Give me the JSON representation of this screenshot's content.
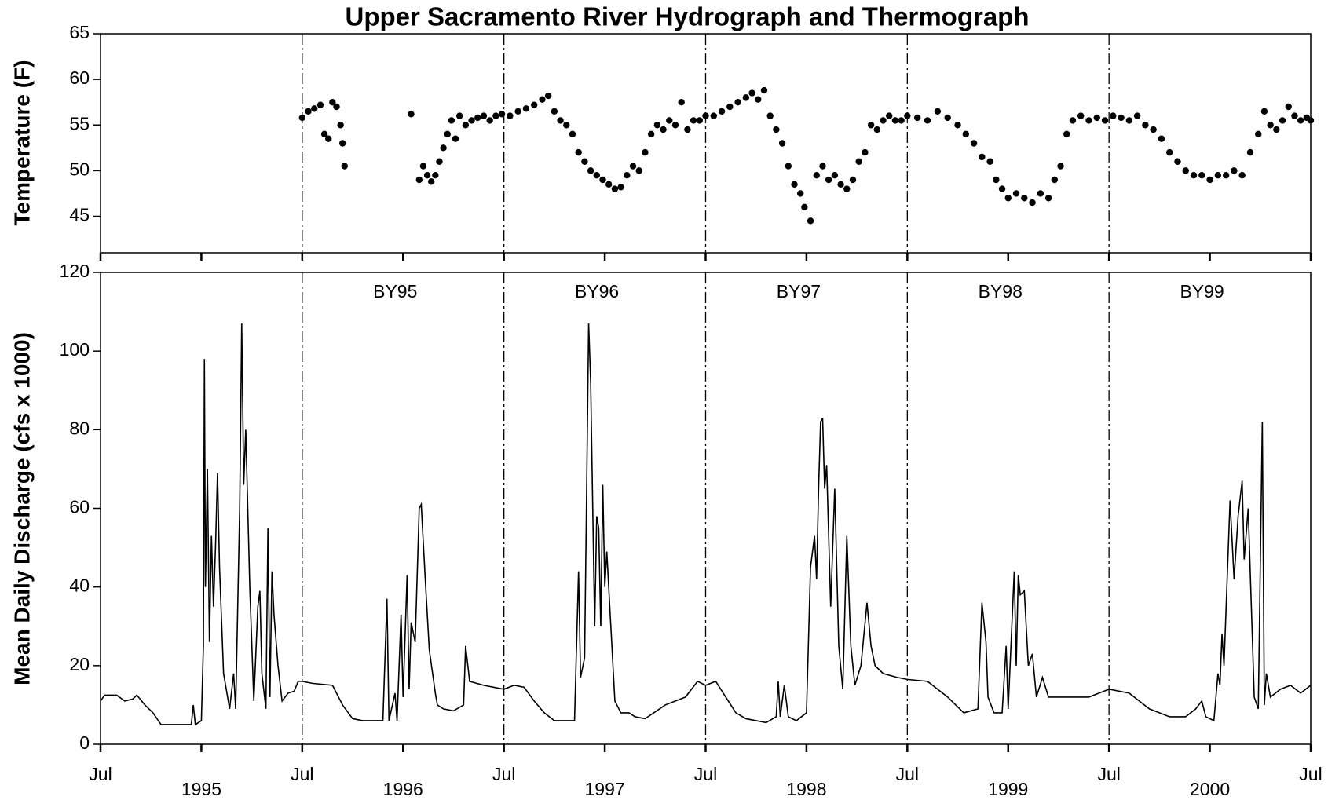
{
  "chart_data": [
    {
      "type": "scatter",
      "title": "Upper Sacramento River Hydrograph and Thermograph",
      "ylabel": "Temperature (F)",
      "xlim": [
        1994.5,
        2000.5
      ],
      "ylim": [
        41,
        65
      ],
      "yticks": [
        45,
        50,
        55,
        60,
        65
      ],
      "color": "#000000",
      "x": [
        1995.5,
        1995.53,
        1995.56,
        1995.59,
        1995.61,
        1995.63,
        1995.65,
        1995.67,
        1995.69,
        1995.7,
        1995.71,
        1996.04,
        1996.08,
        1996.1,
        1996.12,
        1996.14,
        1996.16,
        1996.18,
        1996.2,
        1996.22,
        1996.24,
        1996.26,
        1996.28,
        1996.31,
        1996.34,
        1996.37,
        1996.4,
        1996.43,
        1996.46,
        1996.49,
        1996.53,
        1996.57,
        1996.61,
        1996.65,
        1996.69,
        1996.72,
        1996.75,
        1996.78,
        1996.81,
        1996.84,
        1996.87,
        1996.9,
        1996.93,
        1996.96,
        1996.99,
        1997.02,
        1997.05,
        1997.08,
        1997.11,
        1997.14,
        1997.17,
        1997.2,
        1997.23,
        1997.26,
        1997.29,
        1997.32,
        1997.35,
        1997.38,
        1997.41,
        1997.44,
        1997.47,
        1997.5,
        1997.54,
        1997.58,
        1997.62,
        1997.66,
        1997.7,
        1997.73,
        1997.76,
        1997.79,
        1997.82,
        1997.85,
        1997.88,
        1997.91,
        1997.94,
        1997.97,
        1997.99,
        1998.02,
        1998.05,
        1998.08,
        1998.11,
        1998.14,
        1998.17,
        1998.2,
        1998.23,
        1998.26,
        1998.29,
        1998.32,
        1998.35,
        1998.38,
        1998.41,
        1998.44,
        1998.47,
        1998.5,
        1998.55,
        1998.6,
        1998.65,
        1998.7,
        1998.75,
        1998.79,
        1998.83,
        1998.87,
        1998.91,
        1998.94,
        1998.97,
        1999.0,
        1999.04,
        1999.08,
        1999.12,
        1999.16,
        1999.2,
        1999.23,
        1999.26,
        1999.29,
        1999.32,
        1999.36,
        1999.4,
        1999.44,
        1999.48,
        1999.52,
        1999.56,
        1999.6,
        1999.64,
        1999.68,
        1999.72,
        1999.76,
        1999.8,
        1999.84,
        1999.88,
        1999.92,
        1999.96,
        2000.0,
        2000.04,
        2000.08,
        2000.12,
        2000.16,
        2000.2,
        2000.24,
        2000.27,
        2000.3,
        2000.33,
        2000.36,
        2000.39,
        2000.42,
        2000.45,
        2000.48,
        2000.5
      ],
      "values": [
        55.8,
        56.5,
        56.8,
        57.2,
        54,
        53.5,
        57.5,
        57,
        55,
        53,
        50.5,
        56.2,
        49,
        50.5,
        49.5,
        48.8,
        49.5,
        51,
        52.5,
        54,
        55.5,
        53.5,
        56,
        55,
        55.5,
        55.8,
        56,
        55.5,
        56,
        56.2,
        56,
        56.5,
        56.8,
        57.2,
        57.8,
        58.2,
        56.5,
        55.5,
        55,
        54,
        52,
        51,
        50,
        49.5,
        49,
        48.5,
        48,
        48.2,
        49.5,
        50.5,
        50,
        52,
        54,
        55,
        54.5,
        55.5,
        55,
        57.5,
        54.5,
        55.5,
        55.5,
        56,
        56,
        56.5,
        57,
        57.5,
        58,
        58.5,
        57.8,
        58.8,
        56,
        54.5,
        53,
        50.5,
        48.5,
        47.5,
        46,
        44.5,
        49.5,
        50.5,
        49,
        49.5,
        48.5,
        48,
        49,
        51,
        52,
        55,
        54.5,
        55.5,
        56,
        55.5,
        55.5,
        56,
        55.8,
        55.5,
        56.5,
        55.8,
        55,
        54,
        53,
        51.5,
        51,
        49,
        48,
        47,
        47.5,
        47,
        46.5,
        47.5,
        47,
        49,
        50.5,
        54,
        55.5,
        56,
        55.5,
        55.8,
        55.5,
        56,
        55.8,
        55.5,
        56,
        55,
        54.5,
        53.5,
        52,
        51,
        50,
        49.5,
        49.5,
        49,
        49.5,
        49.5,
        50,
        49.5,
        52,
        54,
        56.5,
        55,
        54.5,
        55.5,
        57,
        56,
        55.5,
        55.8,
        55.5
      ]
    },
    {
      "type": "line",
      "ylabel": "Mean Daily Discharge (cfs x 1000)",
      "color": "#000000",
      "xlim": [
        1994.5,
        2000.5
      ],
      "ylim": [
        0,
        120
      ],
      "yticks": [
        0,
        20,
        40,
        60,
        80,
        100,
        120
      ],
      "xticks": [
        {
          "value": 1994.5,
          "label": "Jul"
        },
        1995,
        {
          "value": 1995.5,
          "label": "Jul"
        },
        1996,
        {
          "value": 1996.5,
          "label": "Jul"
        },
        1997,
        {
          "value": 1997.5,
          "label": "Jul"
        },
        1998,
        {
          "value": 1998.5,
          "label": "Jul"
        },
        1999,
        {
          "value": 1999.5,
          "label": "Jul"
        },
        2000,
        {
          "value": 2000.5,
          "label": "Jul"
        }
      ],
      "annotations": [
        "BY95",
        "BY96",
        "BY97",
        "BY98",
        "BY99"
      ],
      "x": [
        1994.5,
        1994.52,
        1994.58,
        1994.62,
        1994.66,
        1994.68,
        1994.72,
        1994.76,
        1994.8,
        1994.85,
        1994.9,
        1994.95,
        1994.96,
        1994.97,
        1995.0,
        1995.01,
        1995.015,
        1995.02,
        1995.03,
        1995.04,
        1995.05,
        1995.06,
        1995.07,
        1995.08,
        1995.09,
        1995.11,
        1995.14,
        1995.16,
        1995.17,
        1995.19,
        1995.2,
        1995.21,
        1995.22,
        1995.24,
        1995.26,
        1995.28,
        1995.29,
        1995.3,
        1995.32,
        1995.33,
        1995.34,
        1995.35,
        1995.36,
        1995.38,
        1995.4,
        1995.43,
        1995.46,
        1995.48,
        1995.5,
        1995.55,
        1995.65,
        1995.7,
        1995.75,
        1995.8,
        1995.85,
        1995.9,
        1995.92,
        1995.93,
        1995.96,
        1995.97,
        1995.99,
        1996.0,
        1996.02,
        1996.03,
        1996.04,
        1996.06,
        1996.08,
        1996.09,
        1996.11,
        1996.13,
        1996.16,
        1996.17,
        1996.2,
        1996.25,
        1996.3,
        1996.31,
        1996.33,
        1996.4,
        1996.5,
        1996.55,
        1996.6,
        1996.65,
        1996.7,
        1996.75,
        1996.85,
        1996.87,
        1996.88,
        1996.9,
        1996.92,
        1996.93,
        1996.95,
        1996.96,
        1996.97,
        1996.98,
        1996.99,
        1997.0,
        1997.01,
        1997.03,
        1997.05,
        1997.08,
        1997.12,
        1997.15,
        1997.2,
        1997.3,
        1997.4,
        1997.46,
        1997.5,
        1997.55,
        1997.6,
        1997.65,
        1997.7,
        1997.8,
        1997.85,
        1997.86,
        1997.87,
        1997.89,
        1997.91,
        1997.95,
        1998.0,
        1998.02,
        1998.04,
        1998.05,
        1998.06,
        1998.07,
        1998.08,
        1998.09,
        1998.1,
        1998.12,
        1998.14,
        1998.16,
        1998.18,
        1998.2,
        1998.22,
        1998.24,
        1998.27,
        1998.3,
        1998.32,
        1998.34,
        1998.38,
        1998.45,
        1998.5,
        1998.6,
        1998.7,
        1998.78,
        1998.85,
        1998.87,
        1998.89,
        1998.9,
        1998.93,
        1998.97,
        1998.99,
        1999.0,
        1999.03,
        1999.04,
        1999.05,
        1999.06,
        1999.08,
        1999.1,
        1999.12,
        1999.14,
        1999.17,
        1999.2,
        1999.3,
        1999.4,
        1999.5,
        1999.6,
        1999.7,
        1999.8,
        1999.88,
        1999.93,
        1999.96,
        1999.98,
        2000.02,
        2000.04,
        2000.05,
        2000.06,
        2000.07,
        2000.1,
        2000.12,
        2000.14,
        2000.16,
        2000.17,
        2000.19,
        2000.22,
        2000.24,
        2000.26,
        2000.27,
        2000.28,
        2000.3,
        2000.35,
        2000.4,
        2000.45,
        2000.5
      ],
      "values": [
        11,
        12.5,
        12.5,
        11,
        11.5,
        12.5,
        10,
        8,
        5,
        5,
        5,
        5,
        10,
        5,
        6,
        25,
        98,
        40,
        70,
        26,
        53,
        35,
        50,
        69,
        45,
        18,
        9,
        18,
        9,
        60,
        107,
        66,
        80,
        40,
        11,
        35,
        39,
        18,
        9,
        55,
        12,
        44,
        33,
        20,
        11,
        13,
        13.5,
        16,
        16,
        15.5,
        15,
        10,
        6.5,
        6,
        6,
        6,
        37,
        6,
        13,
        6,
        33,
        12,
        43,
        14,
        31,
        26,
        60,
        61,
        42,
        24,
        13,
        10,
        9,
        8.5,
        10,
        25,
        16,
        15,
        14,
        15,
        14.5,
        11,
        8,
        6,
        6,
        44,
        17,
        22,
        107,
        92,
        30,
        58,
        55,
        30,
        66,
        40,
        49,
        30,
        11,
        8,
        8,
        7,
        6.5,
        10,
        12,
        16,
        15,
        16,
        12,
        8,
        6.5,
        5.5,
        7,
        16,
        7,
        15,
        7,
        6,
        8,
        45,
        53,
        42,
        65,
        82,
        83,
        65,
        71,
        35,
        65,
        25,
        14,
        53,
        25,
        15,
        20,
        36,
        25,
        20,
        18,
        17,
        16.5,
        16,
        12,
        8,
        9,
        36,
        26,
        12,
        8,
        8,
        25,
        9,
        44,
        20,
        43,
        38,
        39,
        20,
        23,
        12,
        17,
        12,
        12,
        12,
        14,
        13,
        9,
        7,
        7,
        9,
        11,
        7,
        6,
        18,
        15,
        28,
        20,
        62,
        42,
        58,
        67,
        47,
        60,
        12,
        9,
        82,
        10,
        18,
        12,
        14,
        15,
        13,
        15
      ]
    }
  ]
}
